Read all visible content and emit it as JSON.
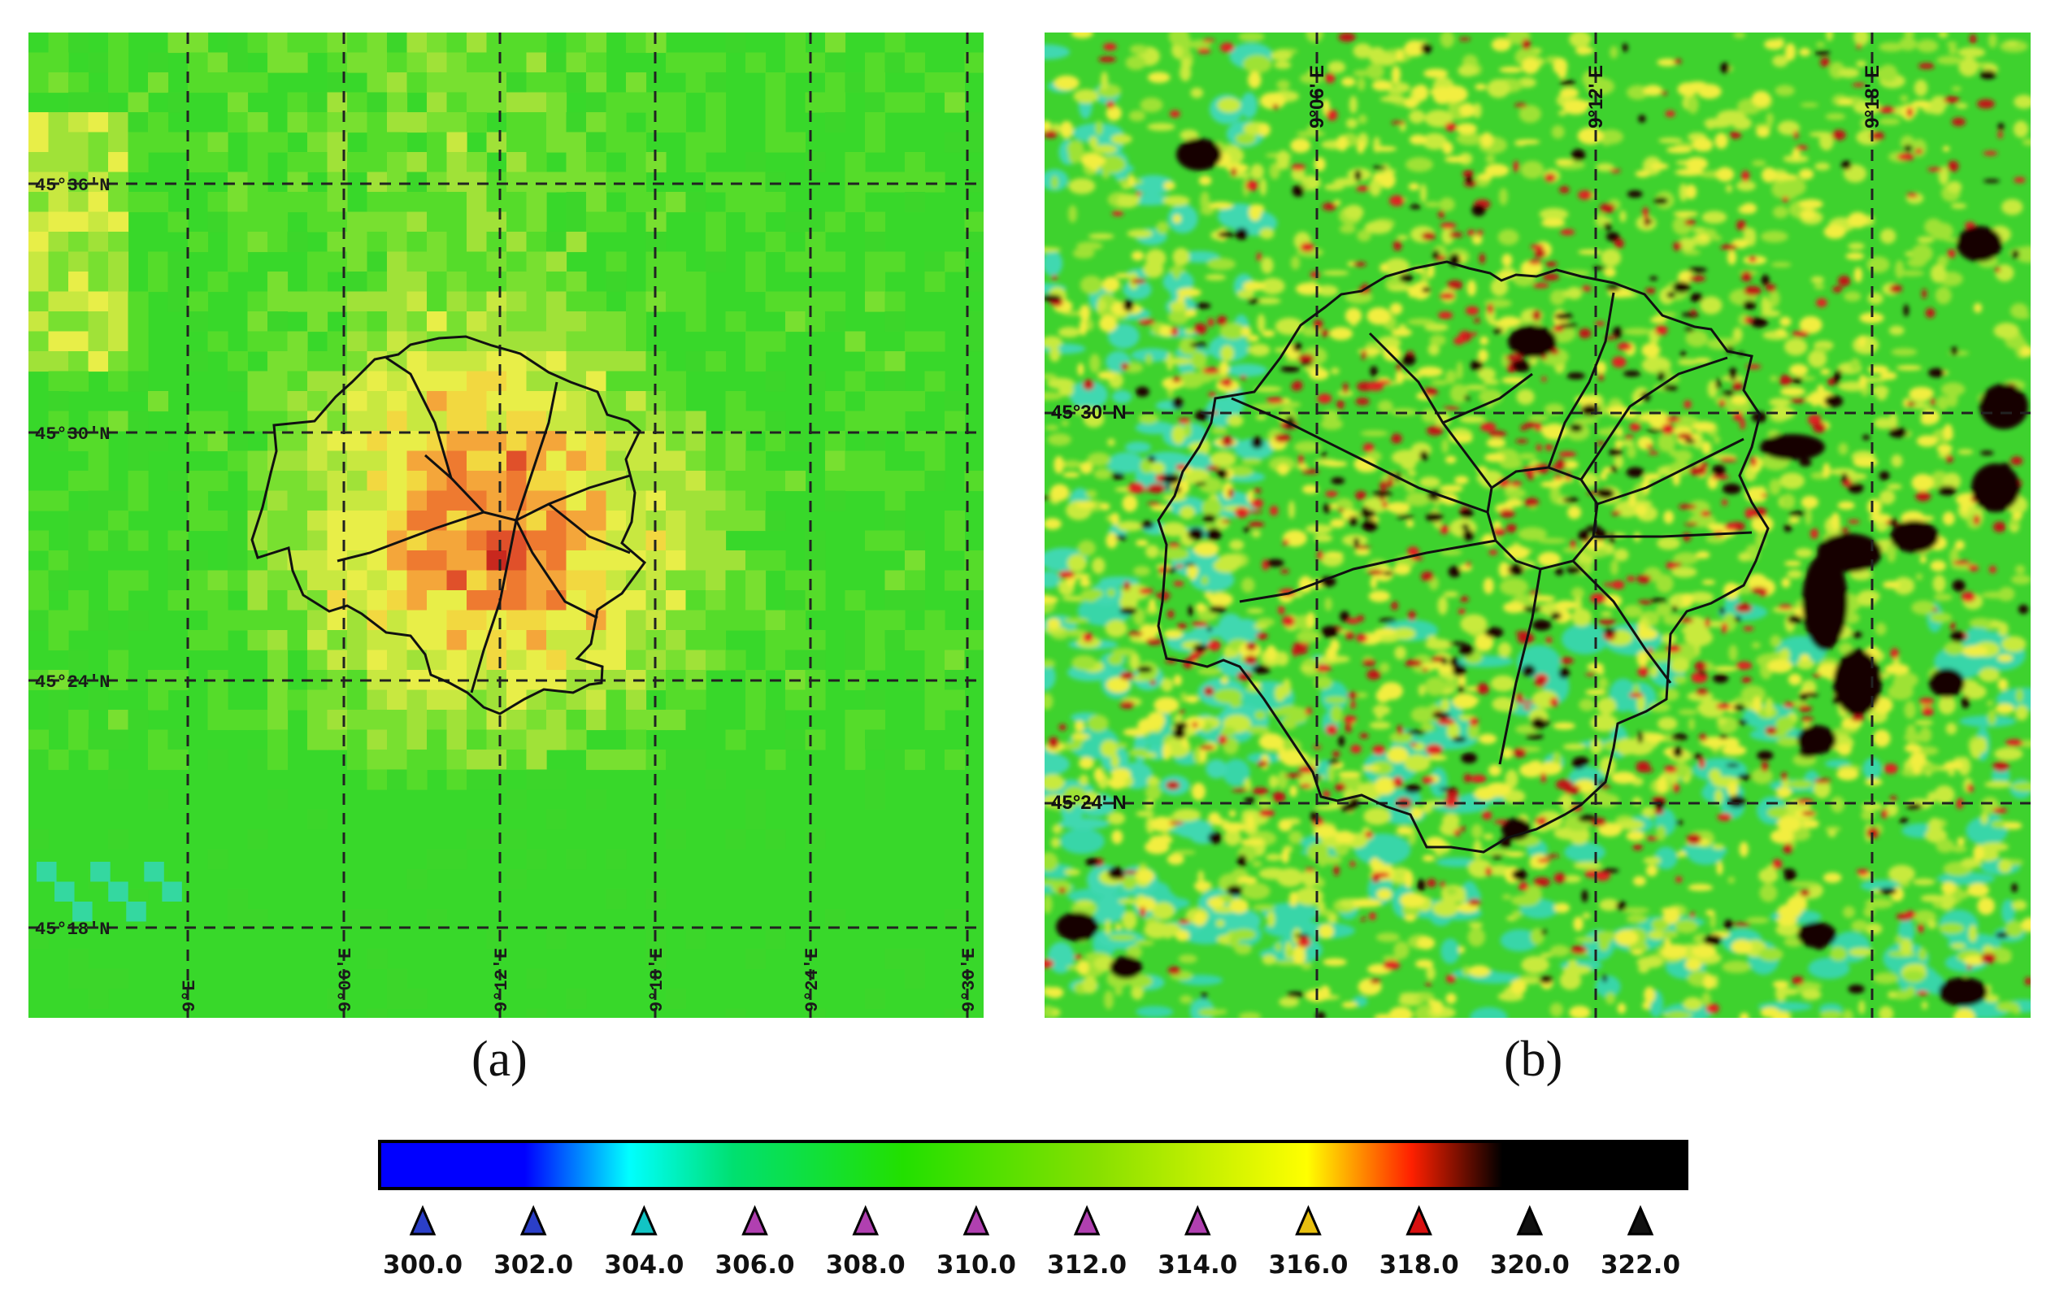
{
  "panels": {
    "a": {
      "caption": "(a)",
      "lat_labels": [
        "45°36'N",
        "45°30'N",
        "45°24'N",
        "45°18'N"
      ],
      "lon_labels": [
        "9°E",
        "9°06'E",
        "9°12'E",
        "9°18'E",
        "9°24'E",
        "9°30'E"
      ]
    },
    "b": {
      "caption": "(b)",
      "lat_labels": [
        "45°30' N",
        "45°24' N"
      ],
      "lon_labels": [
        "9°06' E",
        "9°12' E",
        "9°18' E"
      ]
    }
  },
  "colorbar": {
    "tick_labels": [
      "300.0",
      "302.0",
      "304.0",
      "306.0",
      "308.0",
      "310.0",
      "312.0",
      "314.0",
      "316.0",
      "318.0",
      "320.0",
      "322.0"
    ],
    "marker_colors": [
      "#2b3fc8",
      "#2b3fc8",
      "#12c4c4",
      "#b040b0",
      "#b040b0",
      "#b040b0",
      "#b040b0",
      "#b040b0",
      "#e8c010",
      "#d81010",
      "#111111",
      "#111111"
    ],
    "gradient_colors": [
      "#0000ff",
      "#0000ff",
      "#00ffff",
      "#00e070",
      "#22e000",
      "#88e000",
      "#ffff00",
      "#ff2000",
      "#000000",
      "#000000"
    ]
  }
}
